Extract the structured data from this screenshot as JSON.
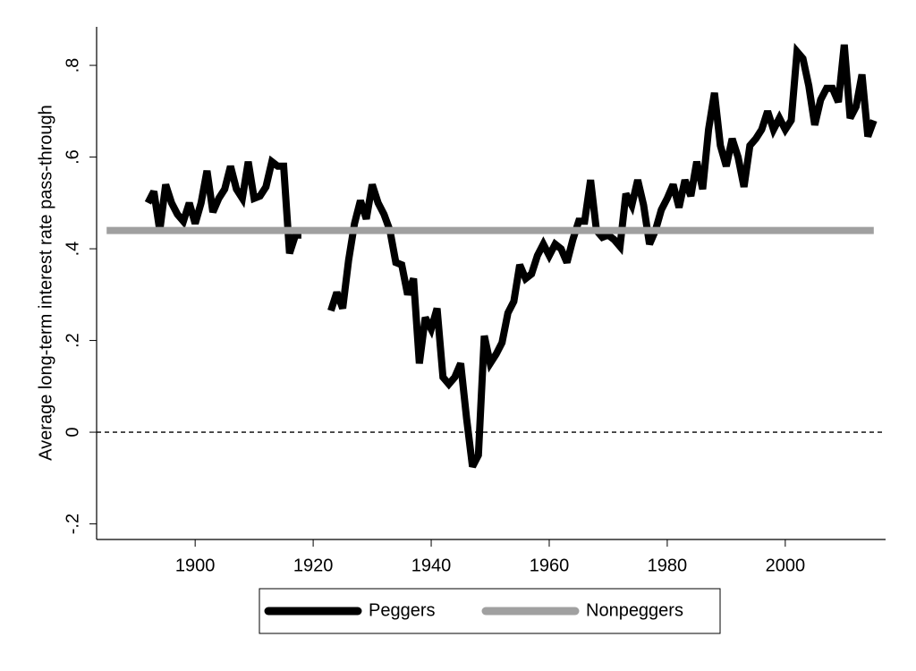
{
  "chart_data": {
    "type": "line",
    "ylabel": "Average long-term interest rate pass-through",
    "x": [
      1892,
      1893,
      1894,
      1895,
      1896,
      1897,
      1898,
      1899,
      1900,
      1901,
      1902,
      1903,
      1904,
      1905,
      1906,
      1907,
      1908,
      1909,
      1910,
      1911,
      1912,
      1913,
      1914,
      1915,
      1916,
      1917,
      1918,
      1919,
      1920,
      1921,
      1922,
      1923,
      1924,
      1925,
      1926,
      1927,
      1928,
      1929,
      1930,
      1931,
      1932,
      1933,
      1934,
      1935,
      1936,
      1937,
      1938,
      1939,
      1940,
      1941,
      1942,
      1943,
      1944,
      1945,
      1946,
      1947,
      1948,
      1949,
      1950,
      1951,
      1952,
      1953,
      1954,
      1955,
      1956,
      1957,
      1958,
      1959,
      1960,
      1961,
      1962,
      1963,
      1964,
      1965,
      1966,
      1967,
      1968,
      1969,
      1970,
      1971,
      1972,
      1973,
      1974,
      1975,
      1976,
      1977,
      1978,
      1979,
      1980,
      1981,
      1982,
      1983,
      1984,
      1985,
      1986,
      1987,
      1988,
      1989,
      1990,
      1991,
      1992,
      1993,
      1994,
      1995,
      1996,
      1997,
      1998,
      1999,
      2000,
      2001,
      2002,
      2003,
      2004,
      2005,
      2006,
      2007,
      2008,
      2009,
      2010,
      2011,
      2012,
      2013,
      2014,
      2015
    ],
    "series": [
      {
        "name": "Peggers",
        "color": "#000000",
        "values": [
          0.5,
          0.525,
          0.44,
          0.54,
          0.5,
          0.475,
          0.46,
          0.5,
          0.455,
          0.5,
          0.57,
          0.48,
          0.51,
          0.53,
          0.58,
          0.53,
          0.51,
          0.59,
          0.51,
          0.515,
          0.535,
          0.59,
          0.58,
          0.58,
          0.39,
          0.43,
          0.43,
          null,
          null,
          null,
          null,
          0.265,
          0.305,
          0.27,
          0.375,
          0.455,
          0.505,
          0.465,
          0.54,
          0.5,
          0.475,
          0.44,
          0.37,
          0.365,
          0.3,
          0.335,
          0.15,
          0.25,
          0.225,
          0.27,
          0.12,
          0.105,
          0.12,
          0.15,
          0.03,
          -0.075,
          -0.05,
          0.21,
          0.15,
          0.17,
          0.195,
          0.26,
          0.285,
          0.365,
          0.335,
          0.345,
          0.385,
          0.41,
          0.385,
          0.41,
          0.4,
          0.37,
          0.42,
          0.46,
          0.46,
          0.55,
          0.44,
          0.425,
          0.43,
          0.42,
          0.405,
          0.52,
          0.495,
          0.55,
          0.495,
          0.41,
          0.44,
          0.485,
          0.51,
          0.54,
          0.49,
          0.55,
          0.515,
          0.59,
          0.53,
          0.66,
          0.74,
          0.625,
          0.58,
          0.64,
          0.6,
          0.535,
          0.625,
          0.64,
          0.66,
          0.7,
          0.66,
          0.685,
          0.66,
          0.68,
          0.83,
          0.815,
          0.755,
          0.67,
          0.725,
          0.75,
          0.75,
          0.72,
          0.845,
          0.685,
          0.71,
          0.78,
          0.645,
          0.68
        ]
      },
      {
        "name": "Nonpeggers",
        "color": "#a0a0a0",
        "x": [
          1885,
          2015
        ],
        "values": [
          0.44,
          0.44
        ]
      }
    ],
    "xlim": [
      1883.3,
      2017
    ],
    "xticks": [
      1900,
      1920,
      1940,
      1960,
      1980,
      2000
    ],
    "ylim": [
      -0.234,
      0.884
    ],
    "yticks": [
      {
        "value": -0.2,
        "label": "-.2"
      },
      0,
      {
        "value": 0.2,
        "label": ".2"
      },
      {
        "value": 0.4,
        "label": ".4"
      },
      {
        "value": 0.6,
        "label": ".6"
      },
      {
        "value": 0.8,
        "label": ".8"
      }
    ],
    "legend": "bottom"
  }
}
